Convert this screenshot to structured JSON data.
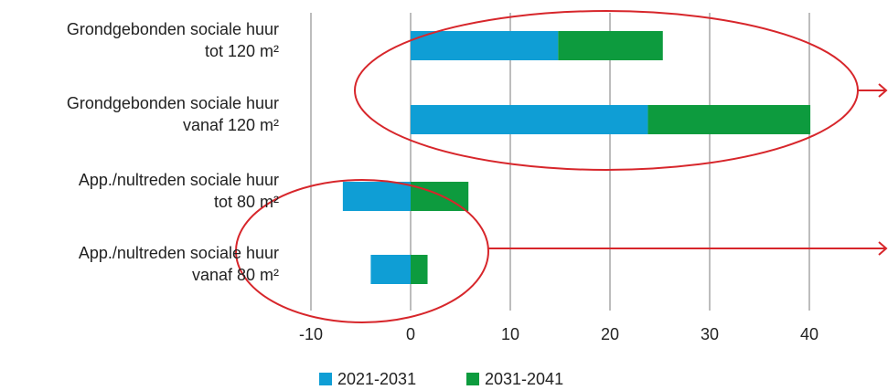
{
  "chart_data": {
    "type": "bar",
    "orientation": "horizontal",
    "stacked": true,
    "categories": [
      [
        "Grondgebonden sociale huur",
        "tot 120 m²"
      ],
      [
        "Grondgebonden sociale huur",
        "vanaf 120 m²"
      ],
      [
        "App./nultreden sociale huur",
        "tot 80 m²"
      ],
      [
        "App./nultreden sociale huur",
        "vanaf 80 m²"
      ]
    ],
    "series": [
      {
        "name": "2021-2031",
        "color": "#0f9ed5",
        "values": [
          14.8,
          23.8,
          -6.8,
          -4.0
        ]
      },
      {
        "name": "2031-2041",
        "color": "#0d9b3e",
        "values": [
          10.5,
          16.3,
          5.8,
          1.7
        ]
      }
    ],
    "xlim": [
      -10,
      40
    ],
    "xticks": [
      -10,
      0,
      10,
      20,
      30,
      40
    ],
    "grid": "vertical",
    "legend_position": "bottom-center",
    "annotation_color": "#d7262b",
    "annotations": [
      {
        "type": "ellipse",
        "encloses_categories": [
          0,
          1
        ],
        "arrow": "right"
      },
      {
        "type": "ellipse",
        "encloses_categories": [
          2,
          3
        ],
        "arrow": "right"
      }
    ]
  }
}
